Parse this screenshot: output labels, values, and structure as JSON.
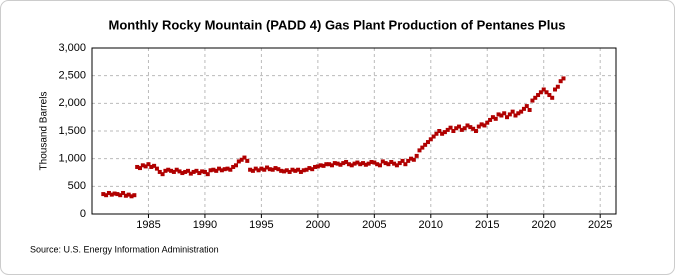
{
  "chart_data": {
    "type": "scatter",
    "title": "Monthly Rocky Mountain (PADD 4) Gas Plant Production of Pentanes Plus",
    "y_label": "Thousand Barrels",
    "source": "Source: U.S. Energy Information Administration",
    "color": "#b00000",
    "grid": true,
    "xlim": [
      1980,
      2026.4
    ],
    "ylim": [
      0,
      3000
    ],
    "xticks": [
      1985,
      1990,
      1995,
      2000,
      2005,
      2010,
      2015,
      2020,
      2025
    ],
    "yticks": [
      0,
      {
        "value": 500,
        "label": "500"
      },
      {
        "value": 1000,
        "label": "1,000"
      },
      {
        "value": 1500,
        "label": "1,500"
      },
      {
        "value": 2000,
        "label": "2,000"
      },
      {
        "value": 2500,
        "label": "2,500"
      },
      {
        "value": 3000,
        "label": "3,000"
      }
    ],
    "x": [
      1981,
      1981.25,
      1981.5,
      1981.75,
      1982,
      1982.25,
      1982.5,
      1982.75,
      1983,
      1983.25,
      1983.5,
      1983.75,
      1984,
      1984.25,
      1984.5,
      1984.75,
      1985,
      1985.25,
      1985.5,
      1985.75,
      1986,
      1986.25,
      1986.5,
      1986.75,
      1987,
      1987.25,
      1987.5,
      1987.75,
      1988,
      1988.25,
      1988.5,
      1988.75,
      1989,
      1989.25,
      1989.5,
      1989.75,
      1990,
      1990.25,
      1990.5,
      1990.75,
      1991,
      1991.25,
      1991.5,
      1991.75,
      1992,
      1992.25,
      1992.5,
      1992.75,
      1993,
      1993.25,
      1993.5,
      1993.75,
      1994,
      1994.25,
      1994.5,
      1994.75,
      1995,
      1995.25,
      1995.5,
      1995.75,
      1996,
      1996.25,
      1996.5,
      1996.75,
      1997,
      1997.25,
      1997.5,
      1997.75,
      1998,
      1998.25,
      1998.5,
      1998.75,
      1999,
      1999.25,
      1999.5,
      1999.75,
      2000,
      2000.25,
      2000.5,
      2000.75,
      2001,
      2001.25,
      2001.5,
      2001.75,
      2002,
      2002.25,
      2002.5,
      2002.75,
      2003,
      2003.25,
      2003.5,
      2003.75,
      2004,
      2004.25,
      2004.5,
      2004.75,
      2005,
      2005.25,
      2005.5,
      2005.75,
      2006,
      2006.25,
      2006.5,
      2006.75,
      2007,
      2007.25,
      2007.5,
      2007.75,
      2008,
      2008.25,
      2008.5,
      2008.75,
      2009,
      2009.25,
      2009.5,
      2009.75,
      2010,
      2010.25,
      2010.5,
      2010.75,
      2011,
      2011.25,
      2011.5,
      2011.75,
      2012,
      2012.25,
      2012.5,
      2012.75,
      2013,
      2013.25,
      2013.5,
      2013.75,
      2014,
      2014.25,
      2014.5,
      2014.75,
      2015,
      2015.25,
      2015.5,
      2015.75,
      2016,
      2016.25,
      2016.5,
      2016.75,
      2017,
      2017.25,
      2017.5,
      2017.75,
      2018,
      2018.25,
      2018.5,
      2018.75,
      2019,
      2019.25,
      2019.5,
      2019.75,
      2020,
      2020.25,
      2020.5,
      2020.75,
      2021,
      2021.25,
      2021.5,
      2021.75
    ],
    "values": [
      360,
      340,
      380,
      350,
      370,
      360,
      340,
      380,
      330,
      350,
      320,
      340,
      850,
      830,
      880,
      860,
      900,
      850,
      870,
      820,
      760,
      720,
      780,
      800,
      780,
      760,
      800,
      770,
      740,
      760,
      780,
      730,
      760,
      780,
      740,
      770,
      760,
      720,
      790,
      800,
      780,
      820,
      790,
      810,
      820,
      800,
      850,
      880,
      950,
      980,
      1020,
      960,
      800,
      780,
      820,
      790,
      820,
      800,
      840,
      810,
      800,
      830,
      810,
      780,
      770,
      790,
      760,
      800,
      780,
      800,
      760,
      790,
      800,
      830,
      810,
      850,
      860,
      880,
      870,
      900,
      900,
      880,
      920,
      910,
      890,
      920,
      940,
      900,
      880,
      910,
      930,
      900,
      920,
      890,
      910,
      940,
      930,
      900,
      880,
      950,
      920,
      900,
      940,
      910,
      880,
      920,
      960,
      900,
      960,
      1000,
      980,
      1050,
      1150,
      1200,
      1250,
      1300,
      1350,
      1400,
      1450,
      1500,
      1450,
      1480,
      1520,
      1560,
      1500,
      1550,
      1580,
      1520,
      1550,
      1600,
      1570,
      1540,
      1500,
      1580,
      1620,
      1600,
      1650,
      1700,
      1750,
      1720,
      1800,
      1780,
      1820,
      1750,
      1800,
      1850,
      1780,
      1820,
      1850,
      1900,
      1950,
      1880,
      2050,
      2100,
      2150,
      2200,
      2250,
      2200,
      2150,
      2100,
      2250,
      2300,
      2400,
      2450
    ]
  }
}
